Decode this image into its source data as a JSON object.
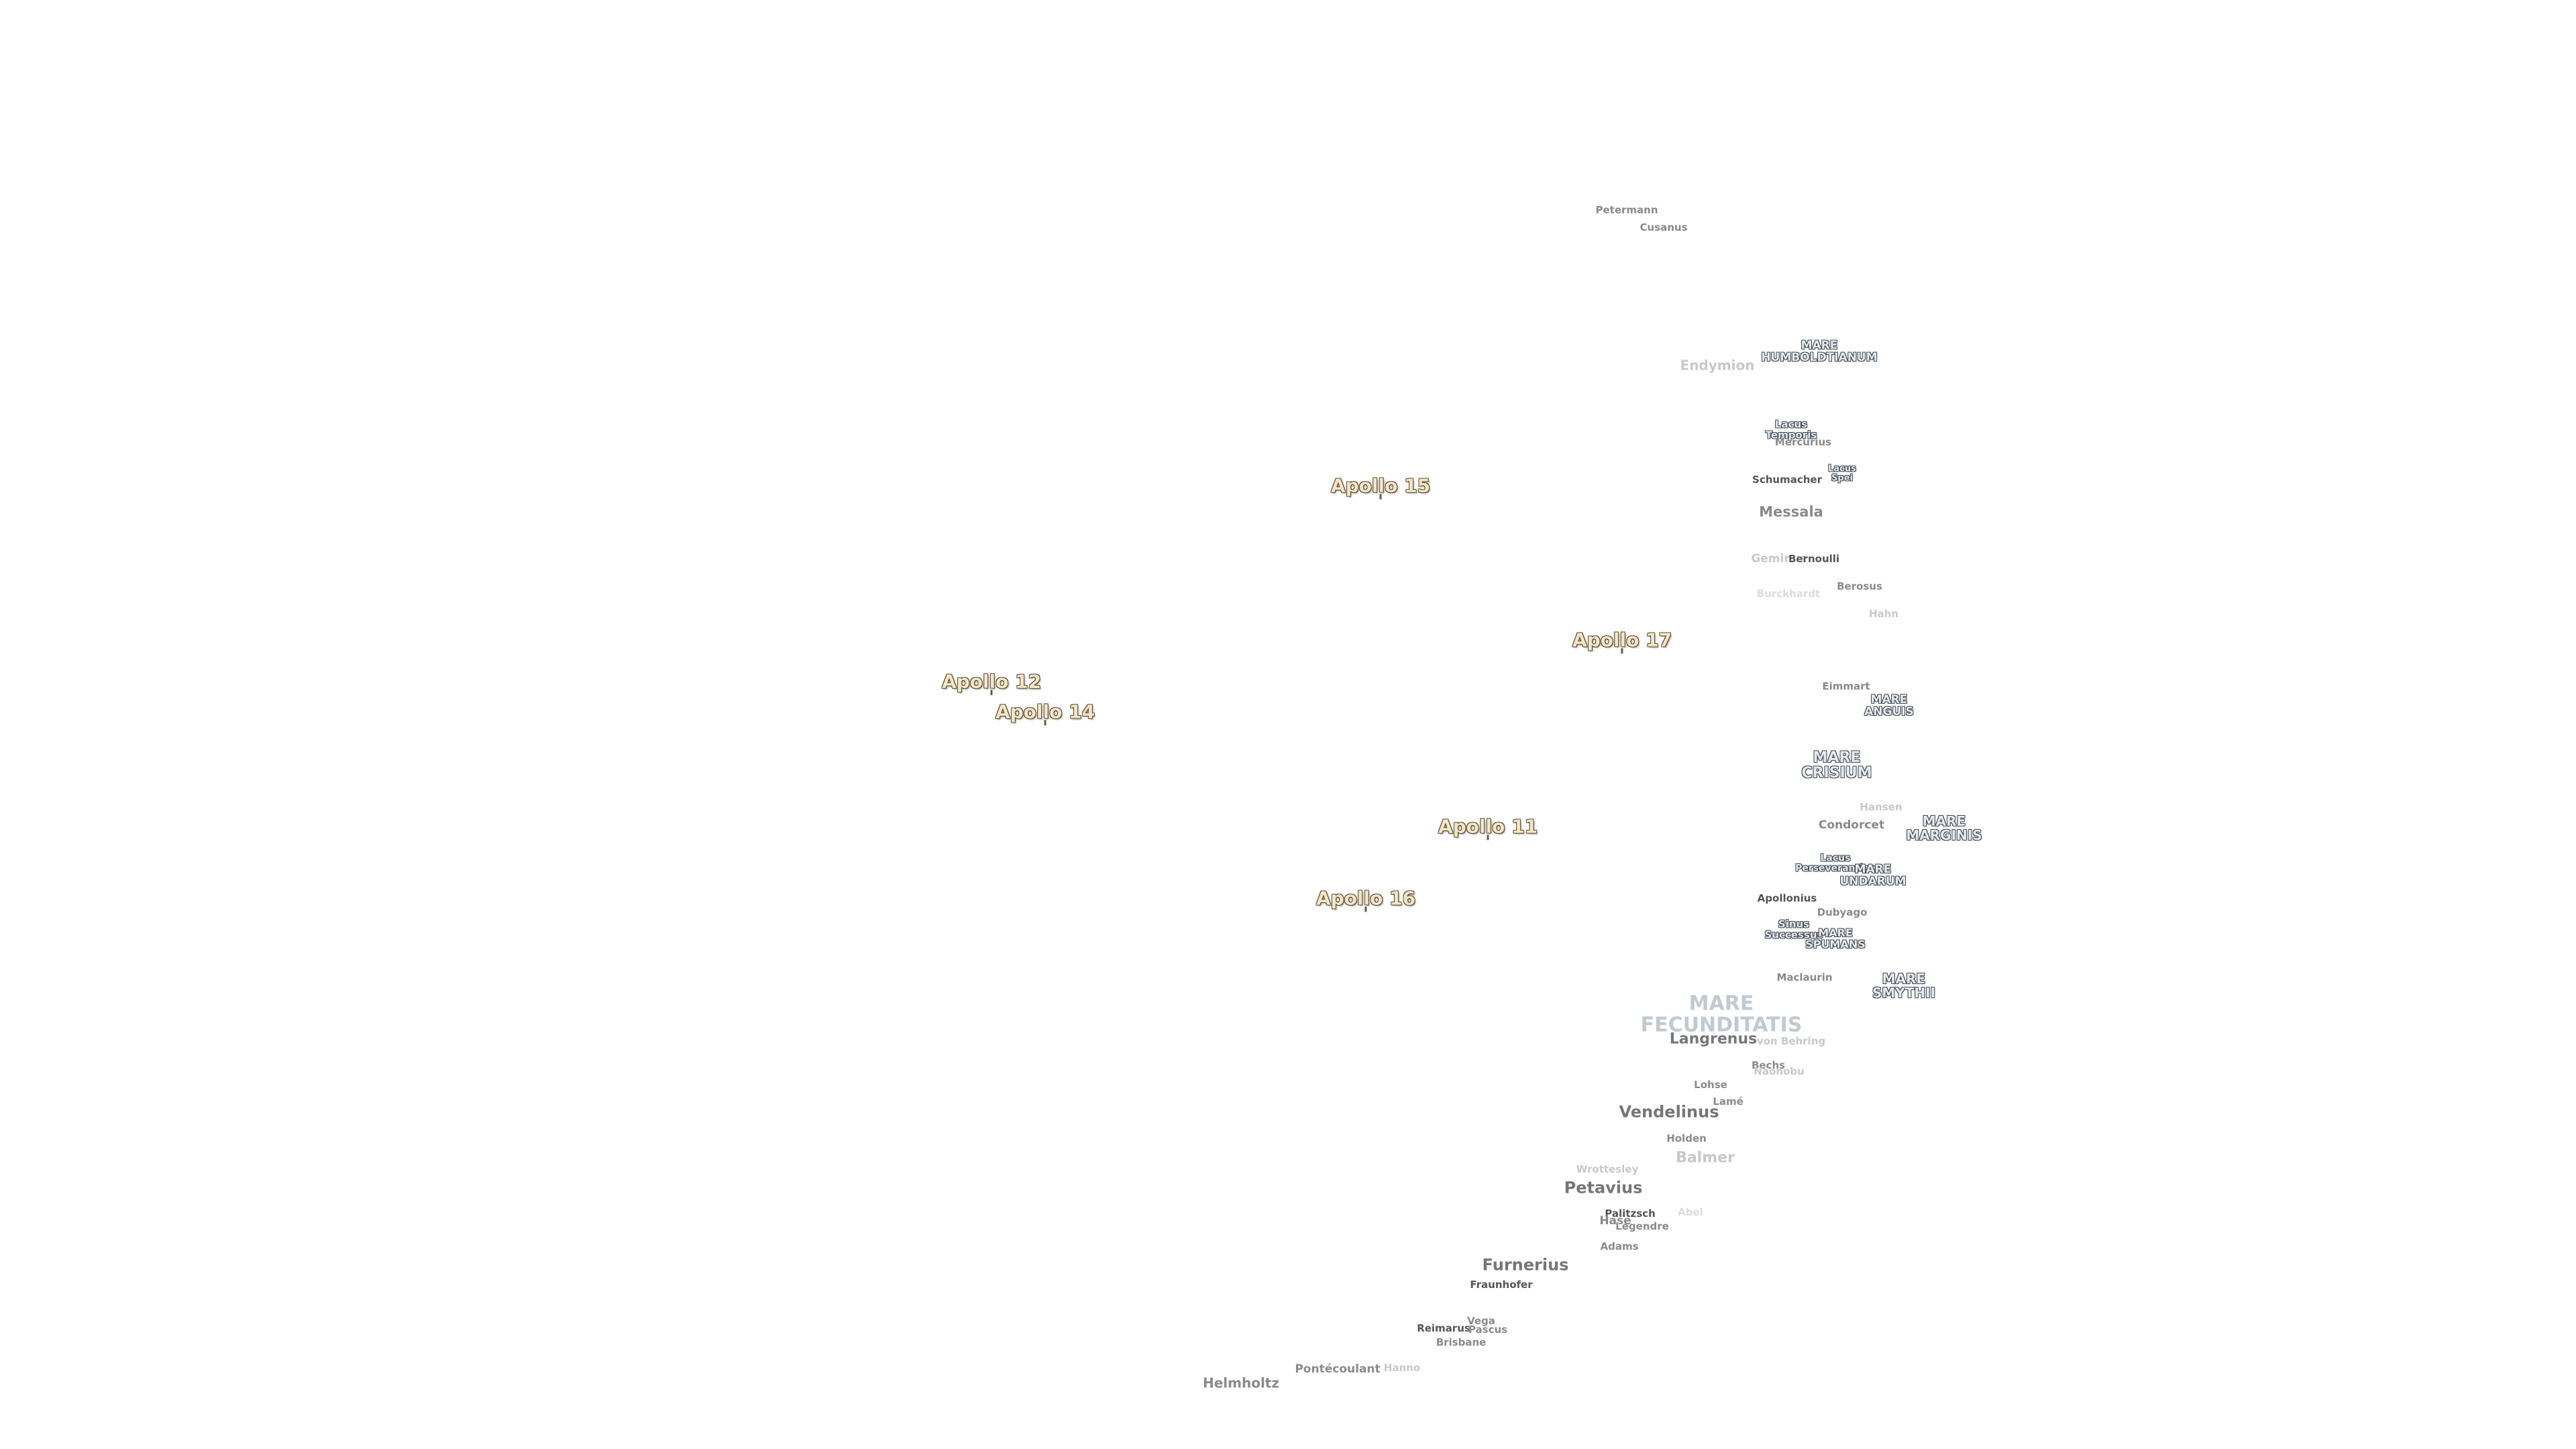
{
  "labels": {
    "petermann": "Petermann",
    "cusanus": "Cusanus",
    "endymion": "Endymion",
    "mare_humboldtianum_1": "MARE",
    "mare_humboldtianum_2": "HUMBOLDTIANUM",
    "lacus_temporis_1": "Lacus",
    "lacus_temporis_2": "Temporis",
    "mercurius": "Mercurius",
    "lacus_spei_1": "Lacus",
    "lacus_spei_2": "Spei",
    "schumacher": "Schumacher",
    "messala": "Messala",
    "geminus": "Geminus",
    "bernoulli": "Bernoulli",
    "burckhardt": "Burckhardt",
    "berosus": "Berosus",
    "hahn": "Hahn",
    "eimmart": "Eimmart",
    "mare_anguis_1": "MARE",
    "mare_anguis_2": "ANGUIS",
    "mare_crisium_1": "MARE",
    "mare_crisium_2": "CRISIUM",
    "hansen": "Hansen",
    "condorcet": "Condorcet",
    "mare_marginis_1": "MARE",
    "mare_marginis_2": "MARGINIS",
    "lacus_perseverantiae_1": "Lacus",
    "lacus_perseverantiae_2": "Perseverantiae",
    "mare_undarum_1": "MARE",
    "mare_undarum_2": "UNDARUM",
    "apollonius": "Apollonius",
    "dubyago": "Dubyago",
    "sinus_successus_1": "Sinus",
    "sinus_successus_2": "Successus",
    "mare_spumans_1": "MARE",
    "mare_spumans_2": "SPUMANS",
    "maclaurin": "Maclaurin",
    "mare_smythii_1": "MARE",
    "mare_smythii_2": "SMYTHII",
    "mare_fecunditatis_1": "MARE",
    "mare_fecunditatis_2": "FECUNDITATIS",
    "langrenus": "Langrenus",
    "von_behring": "von Behring",
    "bechs": "Bechs",
    "naonobu": "Naonobu",
    "lohse": "Lohse",
    "lame": "Lamé",
    "vendelinus": "Vendelinus",
    "holden": "Holden",
    "balmer": "Balmer",
    "wrottesley": "Wrottesley",
    "petavius": "Petavius",
    "palitzsch": "Palitzsch",
    "hase": "Hase",
    "legendre": "Legendre",
    "abel": "Abel",
    "adams": "Adams",
    "furnerius": "Furnerius",
    "fraunhofer": "Fraunhofer",
    "vega": "Vega",
    "reimarus": "Reimarus",
    "pascus": "Pascus",
    "brisbane": "Brisbane",
    "hanno": "Hanno",
    "pontecoulant": "Pontécoulant",
    "helmholtz": "Helmholtz",
    "apollo_15": "Apollo 15",
    "apollo_17": "Apollo 17",
    "apollo_12": "Apollo 12",
    "apollo_14": "Apollo 14",
    "apollo_11": "Apollo 11",
    "apollo_16": "Apollo 16"
  }
}
